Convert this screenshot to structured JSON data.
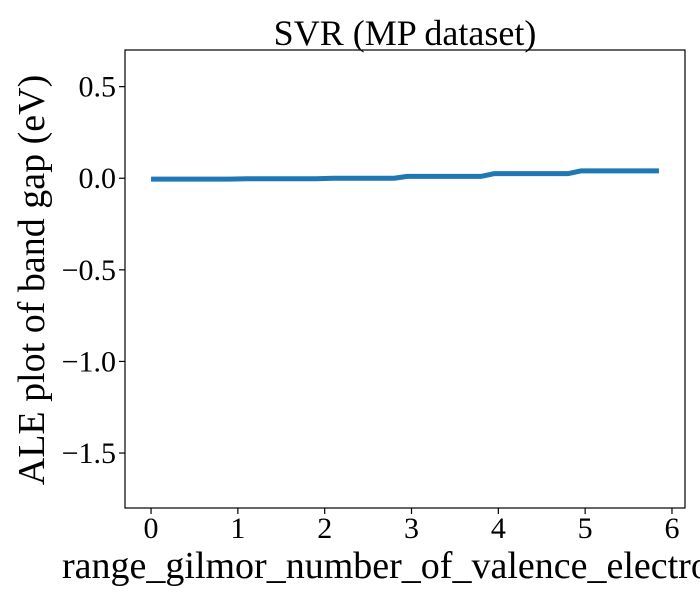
{
  "chart_data": {
    "type": "line",
    "title": "SVR (MP dataset)",
    "xlabel": "range_gilmor_number_of_valence_electrons",
    "ylabel": "ALE plot of band gap (eV)",
    "xlim": [
      -0.3,
      6.15
    ],
    "ylim": [
      -1.8,
      0.7
    ],
    "x_ticks": [
      0,
      1,
      2,
      3,
      4,
      5,
      6
    ],
    "y_ticks": [
      0.5,
      0.0,
      -0.5,
      -1.0,
      -1.5
    ],
    "x_tick_labels": [
      "0",
      "1",
      "2",
      "3",
      "4",
      "5",
      "6"
    ],
    "y_tick_labels": [
      "0.5",
      "0.0",
      "−0.5",
      "−1.0",
      "−1.5"
    ],
    "grid": false,
    "series": [
      {
        "color": "#1f77b4",
        "x": [
          0,
          0.9,
          1.1,
          1.9,
          2.1,
          2.8,
          2.95,
          3.8,
          3.95,
          4.8,
          4.95,
          5.85
        ],
        "y": [
          -0.005,
          -0.005,
          -0.003,
          -0.003,
          0.0,
          0.0,
          0.01,
          0.01,
          0.025,
          0.025,
          0.04,
          0.04
        ]
      }
    ]
  }
}
